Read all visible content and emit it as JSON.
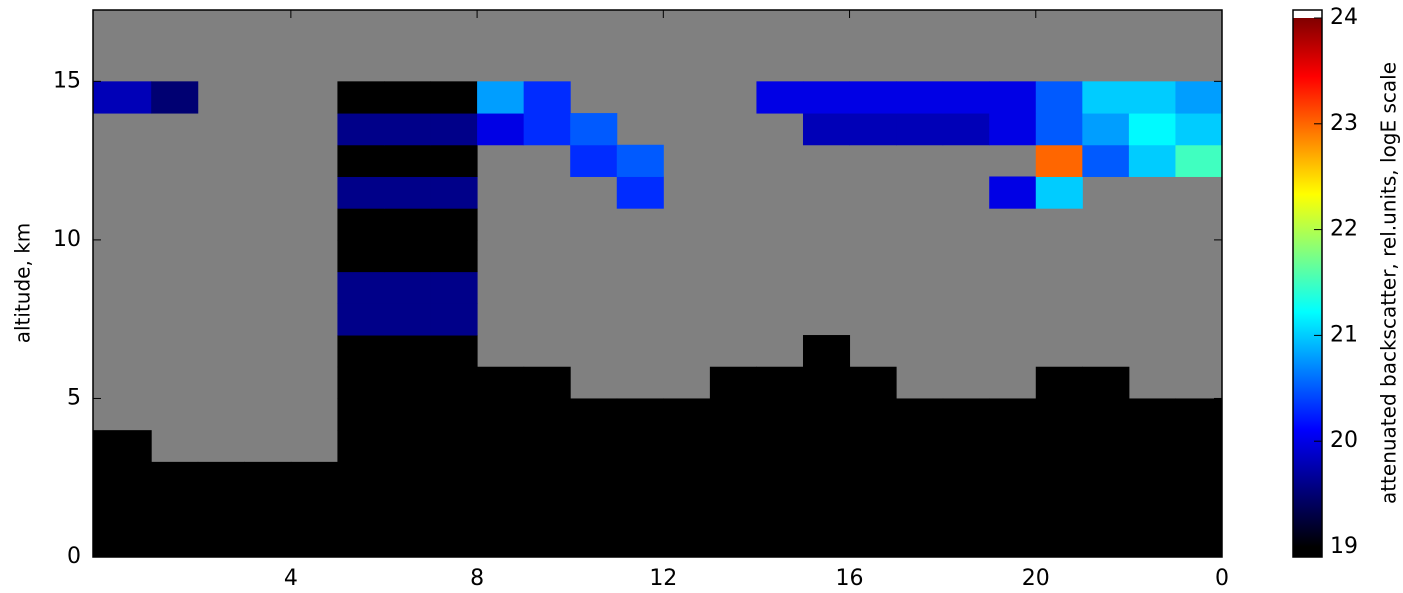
{
  "chart_data": {
    "type": "heatmap",
    "ylabel": "altitude, km",
    "colorbar_label": "attenuated backscatter, rel.units, logE scale",
    "xbins": [
      -0.25,
      1,
      2,
      3,
      4,
      5,
      6,
      7,
      8,
      9,
      10,
      11,
      12,
      13,
      14,
      15,
      16,
      17,
      18,
      19,
      20,
      21,
      22,
      23,
      24
    ],
    "ybins": [
      0,
      1,
      2,
      3,
      4,
      5,
      6,
      7,
      8,
      9,
      10,
      11,
      12,
      13,
      14,
      15,
      16,
      17
    ],
    "z": [
      [
        19,
        19,
        19,
        19,
        19,
        19,
        19,
        19,
        19,
        19,
        19,
        19,
        19,
        19,
        19,
        19,
        19,
        19,
        19,
        19,
        19,
        19,
        19,
        19
      ],
      [
        19,
        19,
        19,
        19,
        19,
        19,
        19,
        19,
        19,
        19,
        19,
        19,
        19,
        19,
        19,
        19,
        19,
        19,
        19,
        19,
        19,
        19,
        19,
        19
      ],
      [
        19,
        19,
        19,
        19,
        19,
        19,
        19,
        19,
        19,
        19,
        19,
        19,
        19,
        19,
        19,
        19,
        19,
        19,
        19,
        19,
        19,
        19,
        19,
        19
      ],
      [
        19,
        null,
        null,
        null,
        null,
        19,
        19,
        19,
        19,
        19,
        19,
        19,
        19,
        19,
        19,
        19,
        19,
        19,
        19,
        19,
        19,
        19,
        19,
        19
      ],
      [
        null,
        null,
        null,
        null,
        null,
        19,
        19,
        19,
        19,
        19,
        19,
        19,
        19,
        19,
        19,
        19,
        19,
        19,
        19,
        19,
        19,
        19,
        19,
        19
      ],
      [
        null,
        null,
        null,
        null,
        null,
        19,
        19,
        19,
        19,
        19,
        null,
        null,
        null,
        19,
        19,
        19,
        19,
        null,
        null,
        null,
        19,
        19,
        null,
        null
      ],
      [
        null,
        null,
        null,
        null,
        null,
        19,
        19,
        19,
        null,
        null,
        null,
        null,
        null,
        null,
        null,
        19,
        null,
        null,
        null,
        null,
        null,
        null,
        null,
        null
      ],
      [
        null,
        null,
        null,
        null,
        null,
        19.6,
        19.6,
        19.6,
        null,
        null,
        null,
        null,
        null,
        null,
        null,
        null,
        null,
        null,
        null,
        null,
        null,
        null,
        null,
        null
      ],
      [
        null,
        null,
        null,
        null,
        null,
        19.6,
        19.6,
        19.6,
        null,
        null,
        null,
        null,
        null,
        null,
        null,
        null,
        null,
        null,
        null,
        null,
        null,
        null,
        null,
        null
      ],
      [
        null,
        null,
        null,
        null,
        null,
        19,
        19,
        19,
        null,
        null,
        null,
        null,
        null,
        null,
        null,
        null,
        null,
        null,
        null,
        null,
        null,
        null,
        null,
        null
      ],
      [
        null,
        null,
        null,
        null,
        null,
        19,
        19,
        19,
        null,
        null,
        null,
        null,
        null,
        null,
        null,
        null,
        null,
        null,
        null,
        null,
        null,
        null,
        null,
        null
      ],
      [
        null,
        null,
        null,
        null,
        null,
        19.6,
        19.6,
        19.6,
        null,
        null,
        null,
        20.3,
        null,
        null,
        null,
        null,
        null,
        null,
        null,
        20,
        21,
        null,
        null,
        null
      ],
      [
        null,
        null,
        null,
        null,
        null,
        19,
        19,
        19,
        null,
        null,
        20.3,
        20.5,
        null,
        null,
        null,
        null,
        null,
        null,
        null,
        null,
        23,
        20.5,
        21,
        21.5
      ],
      [
        null,
        null,
        null,
        null,
        null,
        19.6,
        19.6,
        19.6,
        20,
        20.3,
        20.5,
        null,
        null,
        null,
        null,
        19.8,
        19.8,
        19.8,
        19.8,
        20,
        20.5,
        20.8,
        21.2,
        21
      ],
      [
        19.8,
        19.5,
        null,
        null,
        null,
        19,
        19,
        19,
        20.8,
        20.3,
        null,
        null,
        null,
        null,
        20,
        20,
        20,
        20,
        20,
        20,
        20.5,
        21,
        21,
        20.8
      ],
      [
        null,
        null,
        null,
        null,
        null,
        null,
        null,
        null,
        null,
        null,
        null,
        null,
        null,
        null,
        null,
        null,
        null,
        null,
        null,
        null,
        null,
        null,
        null,
        null
      ],
      [
        null,
        null,
        null,
        null,
        null,
        null,
        null,
        null,
        null,
        null,
        null,
        null,
        null,
        null,
        null,
        null,
        null,
        null,
        null,
        null,
        null,
        null,
        null,
        null
      ]
    ],
    "xlim": [
      -0.25,
      24
    ],
    "ylim": [
      0,
      17.25
    ],
    "xticks": [
      4,
      8,
      12,
      16,
      20,
      {
        "value": 24,
        "label": "0"
      }
    ],
    "yticks": [
      0,
      5,
      10,
      15
    ],
    "clim": [
      19,
      24
    ],
    "cticks": [
      19,
      20,
      21,
      22,
      23,
      24
    ],
    "colormap": [
      "#000000",
      "#00007f",
      "#0000ff",
      "#0080ff",
      "#00ffff",
      "#80ff80",
      "#ffff00",
      "#ff8000",
      "#ff0000",
      "#800000"
    ],
    "nan_color": "#808080",
    "over_color": "#ffffff"
  }
}
